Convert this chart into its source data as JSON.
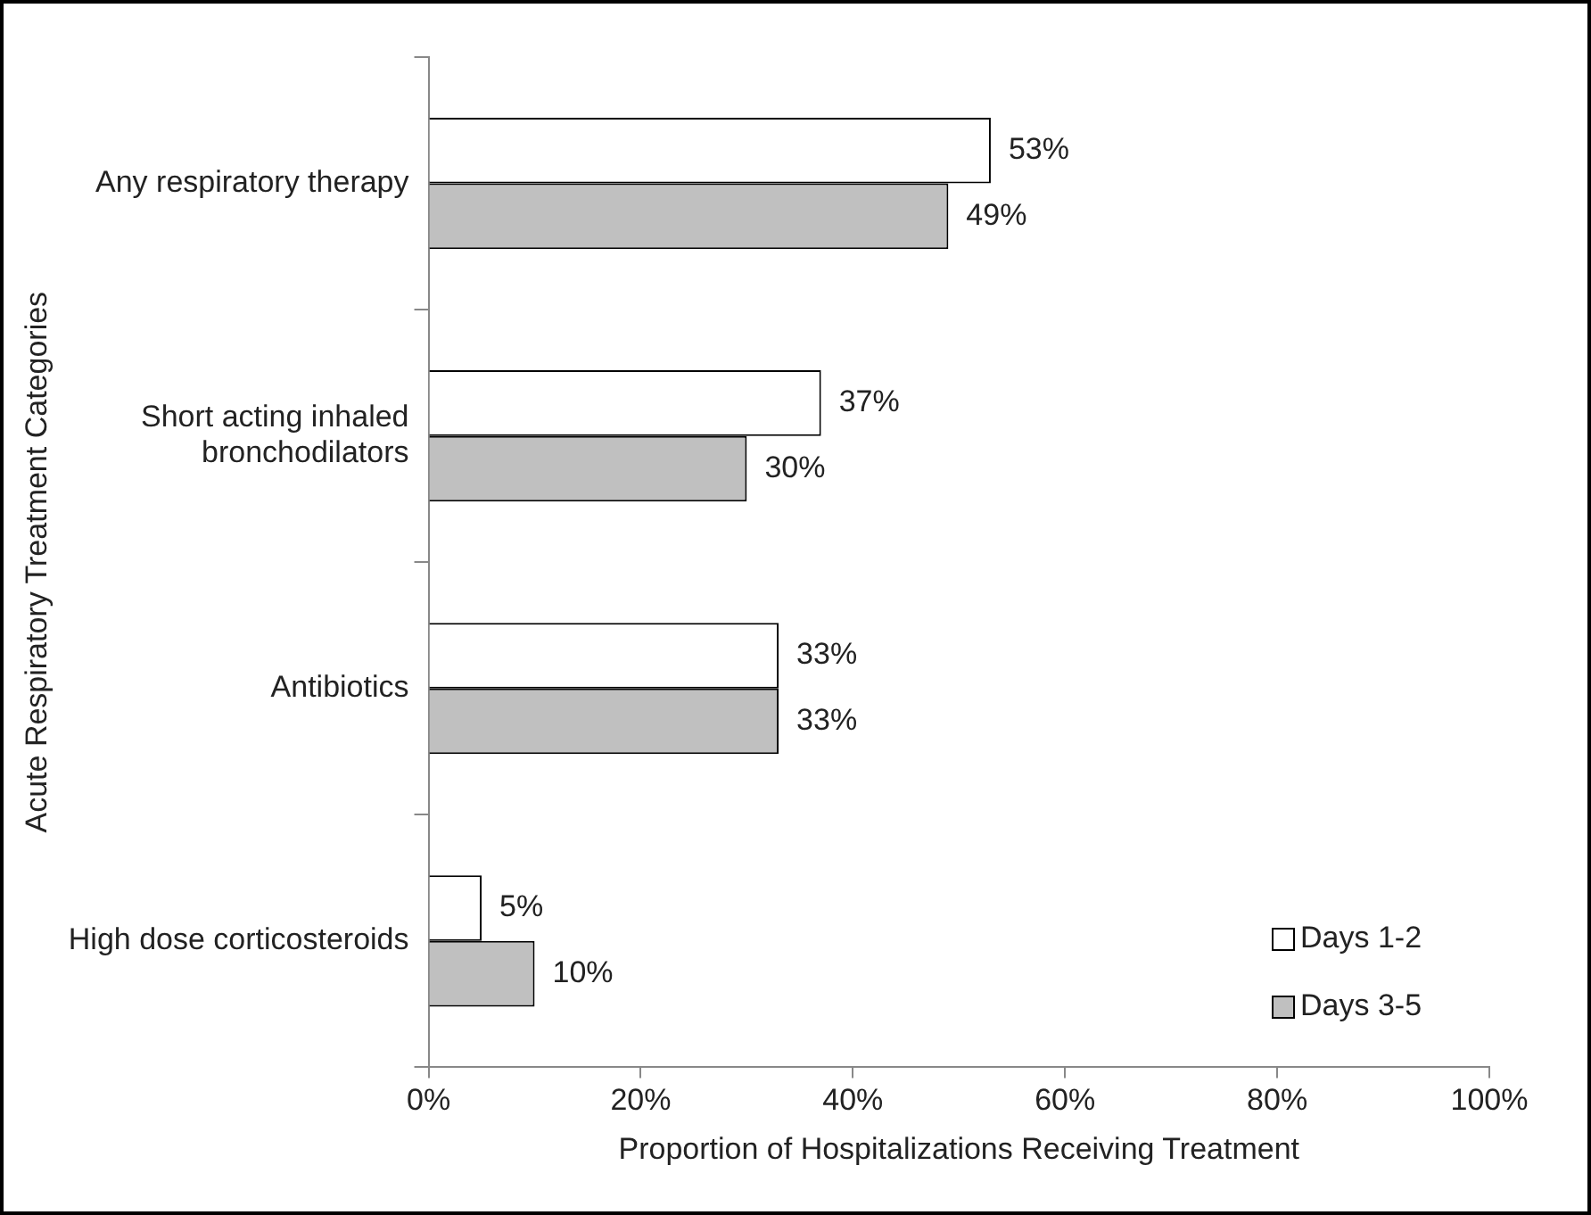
{
  "chart_data": {
    "type": "bar",
    "orientation": "horizontal",
    "xlabel": "Proportion of Hospitalizations Receiving Treatment",
    "ylabel": "Acute Respiratory Treatment Categories",
    "categories": [
      "Any respiratory therapy",
      "Short acting inhaled bronchodilators",
      "Antibiotics",
      "High dose corticosteroids"
    ],
    "series": [
      {
        "name": "Days 1-2",
        "color": "#ffffff",
        "values": [
          53,
          37,
          33,
          5
        ],
        "value_labels": [
          "53%",
          "37%",
          "33%",
          "5%"
        ]
      },
      {
        "name": "Days 3-5",
        "color": "#c0c0c0",
        "values": [
          49,
          30,
          33,
          10
        ],
        "value_labels": [
          "49%",
          "30%",
          "33%",
          "10%"
        ]
      }
    ],
    "xlim": [
      0,
      100
    ],
    "xticks": [
      {
        "value": 0,
        "label": "0%"
      },
      {
        "value": 20,
        "label": "20%"
      },
      {
        "value": 40,
        "label": "40%"
      },
      {
        "value": 60,
        "label": "60%"
      },
      {
        "value": 80,
        "label": "80%"
      },
      {
        "value": 100,
        "label": "100%"
      }
    ],
    "grid": false,
    "legend": "bottom right"
  }
}
